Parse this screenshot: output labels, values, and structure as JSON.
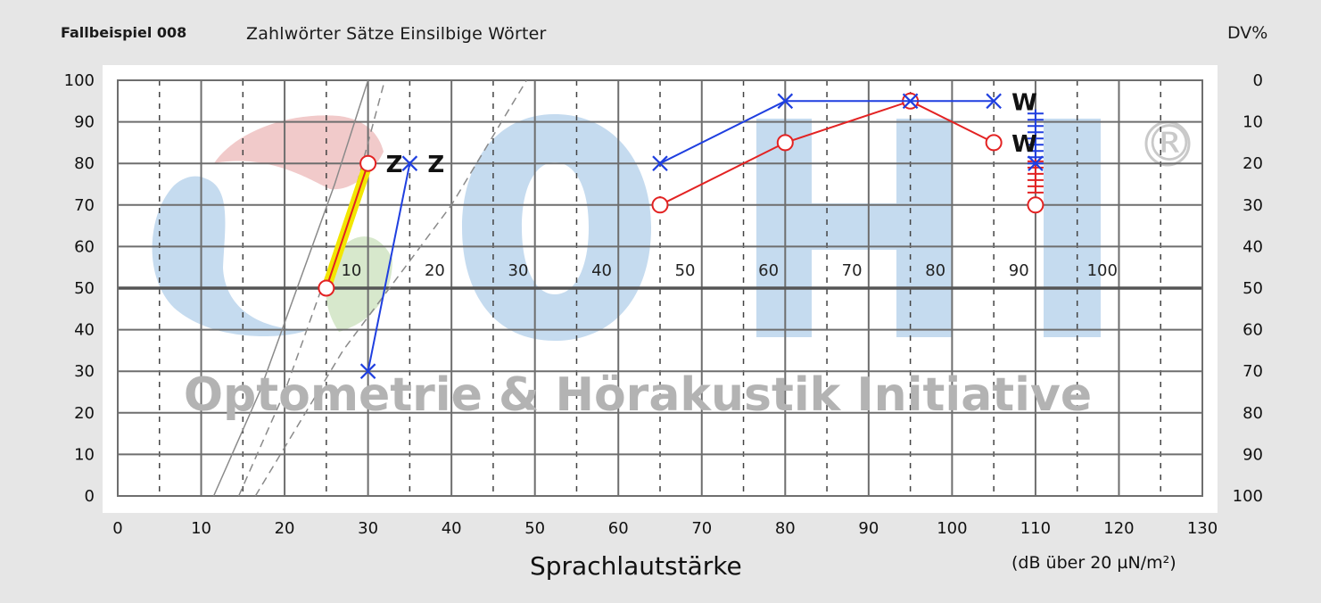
{
  "header": {
    "case_label": "Fallbeispiel 008",
    "title": "Zahlwörter  Sätze  Einsilbige Wörter",
    "right_axis_label": "DV%"
  },
  "chart_data": {
    "type": "line",
    "xlabel": "Sprachlautstärke",
    "x_unit": "(dB über 20 µN/m²)",
    "xlim": [
      0,
      130
    ],
    "ylim": [
      0,
      100
    ],
    "x_ticks": [
      0,
      10,
      20,
      30,
      40,
      50,
      60,
      70,
      80,
      90,
      100,
      110,
      120,
      130
    ],
    "y_ticks_left": [
      0,
      10,
      20,
      30,
      40,
      50,
      60,
      70,
      80,
      90,
      100
    ],
    "y_ticks_right": [
      100,
      90,
      80,
      70,
      60,
      50,
      40,
      30,
      20,
      10,
      0
    ],
    "inner_x_labels": [
      {
        "x": 28,
        "text": "10"
      },
      {
        "x": 38,
        "text": "20"
      },
      {
        "x": 48,
        "text": "30"
      },
      {
        "x": 58,
        "text": "40"
      },
      {
        "x": 68,
        "text": "50"
      },
      {
        "x": 78,
        "text": "60"
      },
      {
        "x": 88,
        "text": "70"
      },
      {
        "x": 98,
        "text": "80"
      },
      {
        "x": 108,
        "text": "90"
      },
      {
        "x": 118,
        "text": "100"
      }
    ],
    "grid": true,
    "reference_curves": [
      {
        "style": "solid",
        "points": [
          [
            11.5,
            0
          ],
          [
            17,
            25
          ],
          [
            26,
            75
          ],
          [
            30,
            100
          ]
        ]
      },
      {
        "style": "dashed",
        "points": [
          [
            14.5,
            0
          ],
          [
            20,
            25
          ],
          [
            28,
            70
          ],
          [
            32,
            100
          ]
        ]
      },
      {
        "style": "dashed",
        "points": [
          [
            16.5,
            0
          ],
          [
            27,
            35
          ],
          [
            40,
            70
          ],
          [
            49,
            100
          ]
        ]
      }
    ],
    "highlight_segment": {
      "color": "#f2e600",
      "points": [
        [
          25,
          50
        ],
        [
          30,
          80
        ]
      ]
    },
    "series": [
      {
        "color": "#e32222",
        "marker": "circle",
        "points": [
          [
            25,
            50
          ],
          [
            30,
            80
          ]
        ],
        "label": "Z"
      },
      {
        "color": "#1f3fe0",
        "marker": "x",
        "points": [
          [
            30,
            30
          ],
          [
            35,
            80
          ]
        ],
        "label": "Z"
      },
      {
        "color": "#e32222",
        "marker": "circle",
        "points": [
          [
            65,
            70
          ],
          [
            80,
            85
          ],
          [
            95,
            95
          ],
          [
            105,
            85
          ]
        ],
        "label": "W"
      },
      {
        "color": "#1f3fe0",
        "marker": "x",
        "points": [
          [
            65,
            80
          ],
          [
            80,
            95
          ],
          [
            95,
            95
          ],
          [
            105,
            95
          ]
        ],
        "label": "W"
      },
      {
        "color": "#e32222",
        "marker": "circle",
        "points": [
          [
            110,
            70
          ]
        ]
      },
      {
        "color": "#1f3fe0",
        "marker": "x",
        "points": [
          [
            110,
            80
          ]
        ]
      }
    ],
    "bar_stacks": [
      {
        "color": "#1f3fe0",
        "x": 110,
        "from": 80,
        "to": 93
      },
      {
        "color": "#e32222",
        "x": 110,
        "from": 73,
        "to": 81
      }
    ]
  },
  "watermark": {
    "text": "Optometrie & Hörakustik Initiative",
    "letters": "OHI",
    "registered": "®",
    "colors": {
      "blue": "#c5dbef",
      "pink": "#f1caca",
      "green": "#d7e8cc"
    }
  }
}
